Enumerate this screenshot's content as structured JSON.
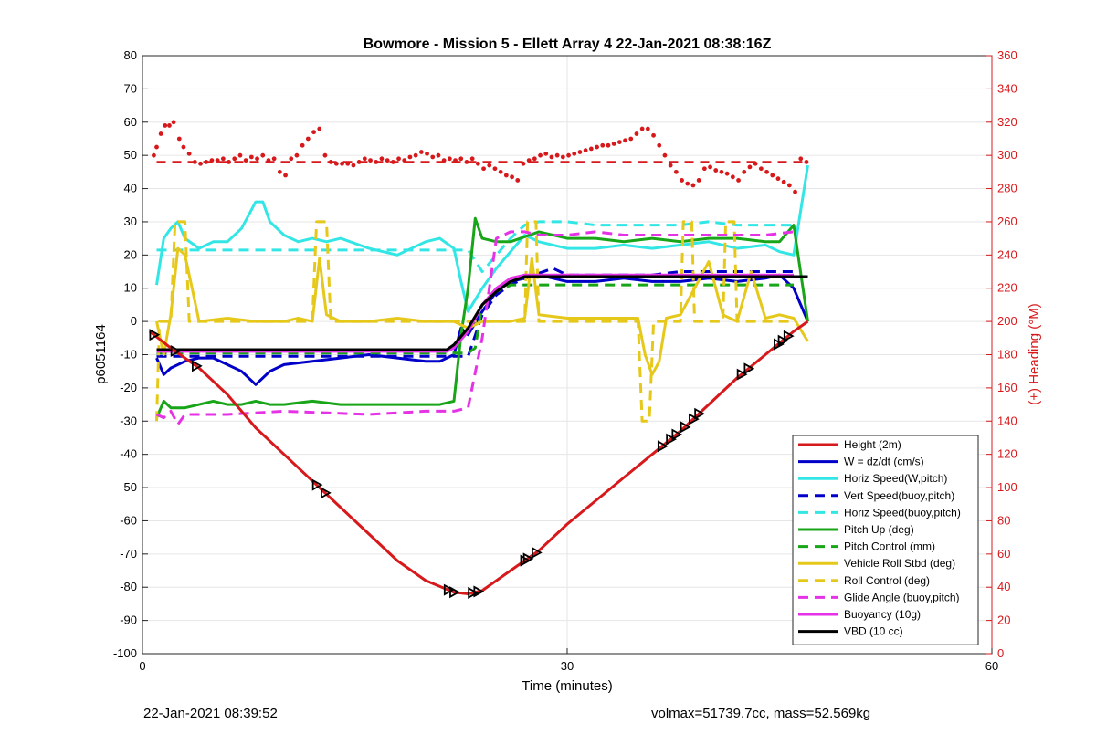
{
  "chart_data": {
    "type": "line",
    "title": "Bowmore - Mission 5 - Ellett Array 4 22-Jan-2021 08:38:16Z",
    "xlabel": "Time (minutes)",
    "ylabel": "p6051164",
    "y2label": "(+) Heading (°M)",
    "xlim": [
      0,
      60
    ],
    "ylim": [
      -100,
      80
    ],
    "y2lim": [
      0,
      360
    ],
    "xticks": [
      "0",
      "30",
      "60"
    ],
    "yticks": [
      "-100",
      "-90",
      "-80",
      "-70",
      "-60",
      "-50",
      "-40",
      "-30",
      "-20",
      "-10",
      "0",
      "10",
      "20",
      "30",
      "40",
      "50",
      "60",
      "70",
      "80"
    ],
    "y2ticks": [
      "0",
      "20",
      "40",
      "60",
      "80",
      "100",
      "120",
      "140",
      "160",
      "180",
      "200",
      "220",
      "240",
      "260",
      "280",
      "300",
      "320",
      "340",
      "360"
    ],
    "grid": true,
    "legend_position": "bottom-right",
    "colors": {
      "red": "#d7191c",
      "blue": "#0000c8",
      "cyan": "#33e6e6",
      "green": "#18a518",
      "yellow": "#e6c81a",
      "magenta": "#e632e6",
      "black": "#000000",
      "axis2": "#d7191c"
    },
    "series": [
      {
        "name": "Height (2m)",
        "color": "#d7191c",
        "style": "solid",
        "x": [
          0.5,
          2,
          4,
          6,
          8,
          10,
          12,
          14,
          16,
          18,
          20,
          22,
          23,
          24,
          26,
          28,
          30,
          32,
          34,
          36,
          38,
          40,
          42,
          44,
          46,
          47
        ],
        "y": [
          -3,
          -8,
          -14,
          -22,
          -32,
          -40,
          -48,
          -56,
          -64,
          -72,
          -78,
          -81.5,
          -82,
          -81,
          -75,
          -69,
          -61,
          -54,
          -47,
          -40,
          -33,
          -25,
          -17,
          -10,
          -3,
          0
        ]
      },
      {
        "name": "W = dz/dt (cm/s)",
        "color": "#0000c8",
        "style": "solid",
        "x": [
          1,
          1.5,
          2,
          3,
          4,
          5,
          6,
          7,
          8,
          9,
          10,
          12,
          14,
          16,
          18,
          20,
          21,
          22,
          22.5,
          23,
          24,
          25,
          26,
          28,
          30,
          32,
          34,
          36,
          38,
          40,
          42,
          44,
          45,
          46,
          47
        ],
        "y": [
          -11,
          -16,
          -14,
          -12,
          -11,
          -11,
          -13,
          -15,
          -19,
          -15,
          -13,
          -12,
          -11,
          -10,
          -11,
          -12,
          -12,
          -10,
          -2,
          -4,
          3,
          9,
          12,
          14,
          12,
          12,
          13,
          12,
          12,
          13,
          12,
          13,
          14,
          10,
          0
        ]
      },
      {
        "name": "Horiz Speed(W,pitch)",
        "color": "#33e6e6",
        "style": "solid",
        "x": [
          1,
          1.5,
          2,
          2.5,
          3,
          4,
          5,
          6,
          7,
          8,
          8.5,
          9,
          10,
          11,
          12,
          13,
          14,
          16,
          18,
          20,
          21,
          22,
          22.5,
          23,
          24,
          25,
          26,
          27,
          28,
          30,
          32,
          34,
          36,
          38,
          40,
          42,
          44,
          45,
          46,
          47
        ],
        "y": [
          11,
          25,
          28,
          30,
          25,
          22,
          24,
          24,
          28,
          36,
          36,
          30,
          26,
          24,
          25,
          24,
          25,
          22,
          20,
          24,
          25,
          22,
          12,
          3,
          10,
          16,
          21,
          26,
          24,
          22,
          22,
          23,
          22,
          23,
          24,
          22,
          23,
          21,
          20,
          47
        ]
      },
      {
        "name": "Vert Speed(buoy,pitch)",
        "color": "#0000c8",
        "style": "dashed",
        "x": [
          1,
          23,
          24,
          25,
          26,
          27,
          29,
          30,
          32,
          34,
          36,
          38,
          40,
          42,
          44,
          46
        ],
        "y": [
          -10.5,
          -10.5,
          2,
          8,
          11,
          13,
          16,
          14,
          14,
          14,
          14,
          15,
          15,
          15,
          15,
          15
        ]
      },
      {
        "name": "Horiz Speed(buoy,pitch)",
        "color": "#33e6e6",
        "style": "dashed",
        "x": [
          1,
          23,
          24,
          25,
          26,
          27,
          28,
          30,
          32,
          34,
          36,
          38,
          40,
          42,
          44,
          46
        ],
        "y": [
          21.5,
          21.5,
          15,
          20,
          25,
          29,
          30,
          30,
          29,
          29,
          29,
          29,
          30,
          29,
          29,
          29
        ]
      },
      {
        "name": "Pitch Up (deg)",
        "color": "#18a518",
        "style": "solid",
        "x": [
          1,
          1.5,
          2,
          3,
          4,
          5,
          6,
          7,
          8,
          9,
          10,
          12,
          14,
          16,
          18,
          20,
          21,
          22,
          22.5,
          23,
          23.5,
          24,
          25,
          26,
          28,
          30,
          32,
          34,
          36,
          38,
          40,
          42,
          44,
          45,
          46,
          47
        ],
        "y": [
          -29,
          -24,
          -26,
          -26,
          -25,
          -24,
          -25,
          -25,
          -24,
          -25,
          -25,
          -24,
          -25,
          -25,
          -25,
          -25,
          -25,
          -24,
          -4,
          10,
          31,
          25,
          24,
          24,
          27,
          25,
          25,
          24,
          25,
          24,
          25,
          25,
          24,
          24,
          29,
          0
        ]
      },
      {
        "name": "Pitch Control (mm)",
        "color": "#18a518",
        "style": "dashed",
        "x": [
          1,
          23,
          23.5,
          24,
          25,
          26,
          27,
          28,
          30,
          46
        ],
        "y": [
          -9.5,
          -9.5,
          -8,
          5,
          9,
          11,
          11,
          11,
          11,
          11
        ]
      },
      {
        "name": "Vehicle Roll Stbd (deg)",
        "color": "#e6c81a",
        "style": "solid",
        "x": [
          1,
          1.5,
          2,
          2.5,
          3,
          3.5,
          4,
          6,
          8,
          10,
          11,
          12,
          12.5,
          13,
          13.5,
          14,
          16,
          18,
          20,
          22,
          23,
          24,
          26,
          27,
          27.5,
          28,
          30,
          34,
          35,
          35.5,
          36,
          36.5,
          37,
          38,
          39,
          40,
          41,
          42,
          43,
          44,
          45,
          46,
          47
        ],
        "y": [
          0,
          -10,
          2,
          22,
          20,
          10,
          0,
          1,
          0,
          0,
          1,
          0,
          19,
          2,
          1,
          0,
          0,
          1,
          0,
          0,
          -2,
          0,
          0,
          1,
          19,
          2,
          1,
          1,
          1,
          -10,
          -16,
          -12,
          1,
          2,
          10,
          18,
          2,
          0,
          15,
          1,
          2,
          1,
          -6
        ]
      },
      {
        "name": "Roll Control (deg)",
        "color": "#e6c81a",
        "style": "dashed",
        "x": [
          1,
          1.2,
          2,
          2.3,
          3,
          3.3,
          4,
          12,
          12.3,
          13,
          13.3,
          14,
          27,
          27.2,
          27.8,
          28,
          35,
          35.3,
          35.8,
          36.1,
          37,
          38,
          38.2,
          38.8,
          39,
          41,
          41.2,
          41.8,
          42,
          46
        ],
        "y": [
          -30,
          0,
          0,
          30,
          30,
          0,
          0,
          0,
          30,
          30,
          0,
          0,
          0,
          30,
          30,
          0,
          0,
          -30,
          -30,
          0,
          0,
          0,
          30,
          30,
          0,
          0,
          30,
          30,
          0,
          0
        ]
      },
      {
        "name": "Glide Angle (buoy,pitch)",
        "color": "#e632e6",
        "style": "dashed",
        "x": [
          1,
          1.5,
          2,
          2.5,
          3,
          6,
          10,
          16,
          20,
          22,
          23,
          24,
          25,
          26,
          27,
          28,
          30,
          32,
          34,
          36,
          38,
          40,
          42,
          44,
          46
        ],
        "y": [
          -28,
          -29,
          -27,
          -31,
          -28,
          -28,
          -27,
          -28,
          -27,
          -27,
          -26,
          -5,
          25,
          27,
          27,
          26,
          26,
          27,
          26,
          26,
          26,
          26,
          26,
          26,
          27
        ]
      },
      {
        "name": "Buoyancy (10g)",
        "color": "#e632e6",
        "style": "solid",
        "x": [
          1,
          21.5,
          22,
          23,
          24,
          25,
          26,
          27,
          30,
          40,
          46
        ],
        "y": [
          -9,
          -9,
          -8,
          -3,
          5,
          10,
          13,
          14,
          14,
          14,
          14
        ]
      },
      {
        "name": "VBD (10 cc)",
        "color": "#000000",
        "style": "solid",
        "x": [
          1,
          21.5,
          22,
          23,
          24,
          25,
          26,
          27,
          30,
          40,
          47
        ],
        "y": [
          -8.5,
          -8.5,
          -7,
          -2,
          5,
          9,
          12,
          13.5,
          13.5,
          13.5,
          13.5
        ]
      }
    ],
    "heading_scatter": {
      "color": "#d7191c",
      "x": [
        0.8,
        1.0,
        1.3,
        1.6,
        1.9,
        2.2,
        2.6,
        2.9,
        3.3,
        3.7,
        4.1,
        4.5,
        4.9,
        5.3,
        5.7,
        6.1,
        6.5,
        6.9,
        7.3,
        7.7,
        8.1,
        8.5,
        8.9,
        9.3,
        9.7,
        10.1,
        10.5,
        10.9,
        11.3,
        11.7,
        12.1,
        12.5,
        12.9,
        13.3,
        13.7,
        14.1,
        14.5,
        14.9,
        15.3,
        15.7,
        16.1,
        16.5,
        16.9,
        17.3,
        17.7,
        18.1,
        18.5,
        18.9,
        19.3,
        19.7,
        20.1,
        20.5,
        20.9,
        21.3,
        21.7,
        22.1,
        22.5,
        22.9,
        23.3,
        23.7,
        24.1,
        24.5,
        24.9,
        25.3,
        25.7,
        26.1,
        26.5,
        26.9,
        27.3,
        27.7,
        28.1,
        28.5,
        28.9,
        29.3,
        29.7,
        30.1,
        30.5,
        30.9,
        31.3,
        31.7,
        32.1,
        32.5,
        32.9,
        33.3,
        33.7,
        34.1,
        34.5,
        34.9,
        35.3,
        35.7,
        36.1,
        36.5,
        36.9,
        37.3,
        37.7,
        38.1,
        38.5,
        38.9,
        39.3,
        39.7,
        40.1,
        40.5,
        40.9,
        41.3,
        41.7,
        42.1,
        42.5,
        42.9,
        43.3,
        43.7,
        44.1,
        44.5,
        44.9,
        45.3,
        45.7,
        46.1,
        46.5,
        46.9
      ],
      "y": [
        300,
        305,
        313,
        318,
        318,
        320,
        310,
        305,
        301,
        296,
        295,
        296,
        297,
        297,
        298,
        296,
        298,
        300,
        297,
        299,
        298,
        300,
        297,
        298,
        290,
        288,
        298,
        300,
        306,
        310,
        314,
        316,
        300,
        296,
        295,
        295,
        295,
        294,
        296,
        298,
        297,
        296,
        298,
        297,
        296,
        298,
        297,
        299,
        300,
        302,
        301,
        299,
        300,
        297,
        298,
        297,
        298,
        296,
        298,
        295,
        292,
        294,
        292,
        290,
        288,
        287,
        285,
        295,
        297,
        298,
        300,
        301,
        299,
        300,
        299,
        300,
        301,
        302,
        303,
        304,
        305,
        306,
        306,
        307,
        308,
        309,
        310,
        313,
        316,
        316,
        312,
        306,
        300,
        294,
        290,
        285,
        283,
        282,
        285,
        292,
        293,
        291,
        290,
        289,
        287,
        285,
        290,
        293,
        295,
        292,
        290,
        288,
        286,
        284,
        282,
        278,
        298,
        296
      ]
    },
    "heading_ref": {
      "color": "#d7191c",
      "x": [
        1,
        47
      ],
      "y": [
        296,
        296
      ]
    },
    "markers_on_height": [
      0.8,
      2.3,
      3.8,
      12.3,
      12.9,
      21.6,
      22.0,
      23.3,
      23.7,
      27.0,
      27.2,
      27.8,
      36.7,
      37.3,
      37.7,
      38.3,
      38.9,
      39.3,
      42.3,
      42.8,
      44.9,
      45.2,
      45.6
    ]
  },
  "footer": {
    "left": "22-Jan-2021 08:39:52",
    "right": "volmax=51739.7cc, mass=52.569kg"
  }
}
